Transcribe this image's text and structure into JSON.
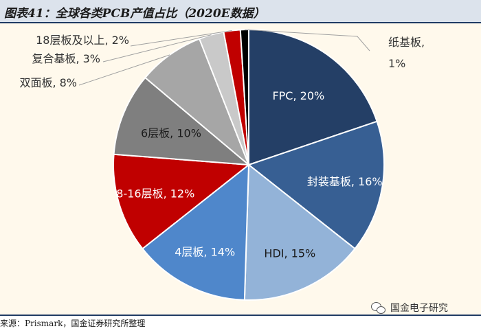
{
  "title": "图表41：全球各类PCB产值占比（2020E数据）",
  "source": "来源：Prismark，国金证券研究所整理",
  "watermark": "国金电子研究",
  "watermark_icon": "wechat-icon",
  "chart_data": {
    "type": "pie",
    "title": "图表41：全球各类PCB产值占比（2020E数据）",
    "start_angle_deg": 0,
    "direction": "clockwise",
    "slices": [
      {
        "name": "FPC",
        "value": 20,
        "label": "FPC, 20%",
        "color": "#243f66"
      },
      {
        "name": "封装基板",
        "value": 16,
        "label": "封装基板, 16%",
        "color": "#375f93"
      },
      {
        "name": "HDI",
        "value": 15,
        "label": "HDI, 15%",
        "color": "#93b3d8"
      },
      {
        "name": "4层板",
        "value": 14,
        "label": "4层板, 14%",
        "color": "#4f87cb"
      },
      {
        "name": "8-16层板",
        "value": 12,
        "label": "8-16层板, 12%",
        "color": "#c00000"
      },
      {
        "name": "6层板",
        "value": 10,
        "label": "6层板, 10%",
        "color": "#7f7f7f"
      },
      {
        "name": "双面板",
        "value": 8,
        "label": "双面板, 8%",
        "color": "#a6a6a6"
      },
      {
        "name": "复合基板",
        "value": 3,
        "label": "复合基板, 3%",
        "color": "#c9c9c9"
      },
      {
        "name": "18层板及以上",
        "value": 2,
        "label": "18层板及以上, 2%",
        "color": "#c00000"
      },
      {
        "name": "纸基板",
        "value": 1,
        "label": "纸基板, 1%",
        "color": "#000000"
      }
    ]
  }
}
